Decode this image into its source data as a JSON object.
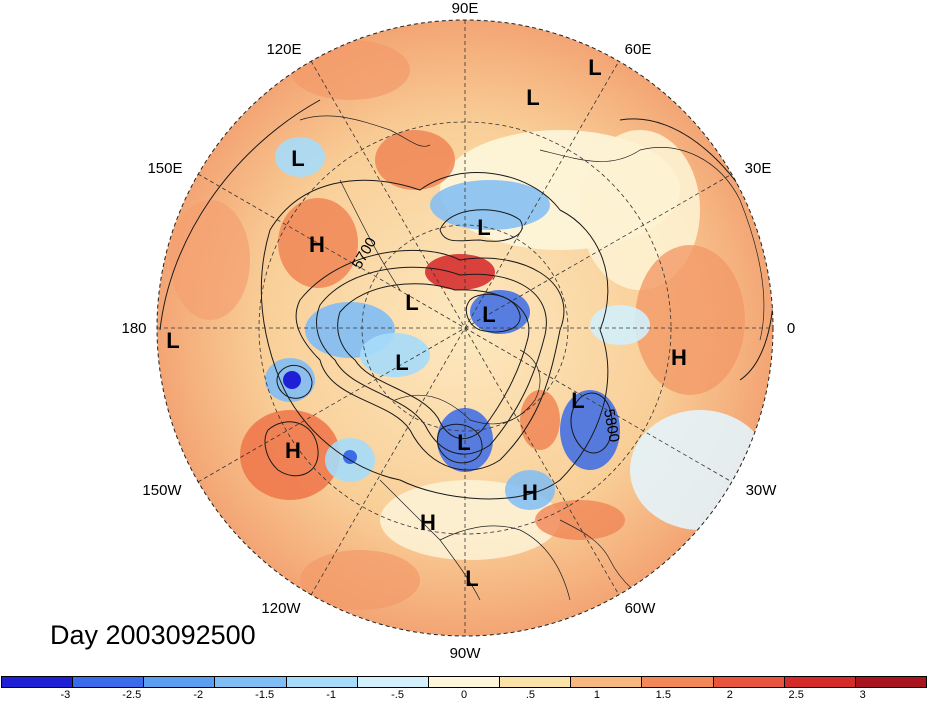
{
  "map": {
    "projection": "north-polar-stereographic",
    "longitude_labels": [
      "90E",
      "60E",
      "30E",
      "0",
      "30W",
      "60W",
      "90W",
      "120W",
      "150W",
      "180",
      "150E",
      "120E"
    ],
    "contour_label": "5800",
    "contour_label_2": "5700",
    "systems": [
      {
        "type": "L"
      },
      {
        "type": "L"
      },
      {
        "type": "L"
      },
      {
        "type": "H"
      },
      {
        "type": "L"
      },
      {
        "type": "L"
      },
      {
        "type": "L"
      },
      {
        "type": "L"
      },
      {
        "type": "H"
      },
      {
        "type": "L"
      },
      {
        "type": "L"
      },
      {
        "type": "H"
      },
      {
        "type": "H"
      },
      {
        "type": "H"
      },
      {
        "type": "L"
      },
      {
        "type": "L"
      }
    ]
  },
  "title": "Day 2003092500",
  "colorbar": {
    "colors": [
      "#1f1fd6",
      "#3a6be8",
      "#5a9ef0",
      "#7fbdf5",
      "#a6dcf9",
      "#d2f0fb",
      "#fcf7d8",
      "#fbe2a6",
      "#f8b77e",
      "#f28758",
      "#e8543c",
      "#d42a2a",
      "#a8141e"
    ],
    "ticks": [
      "-3",
      "-2.5",
      "-2",
      "-1.5",
      "-1",
      "-.5",
      "0",
      ".5",
      "1",
      "1.5",
      "2",
      "2.5",
      "3"
    ]
  }
}
